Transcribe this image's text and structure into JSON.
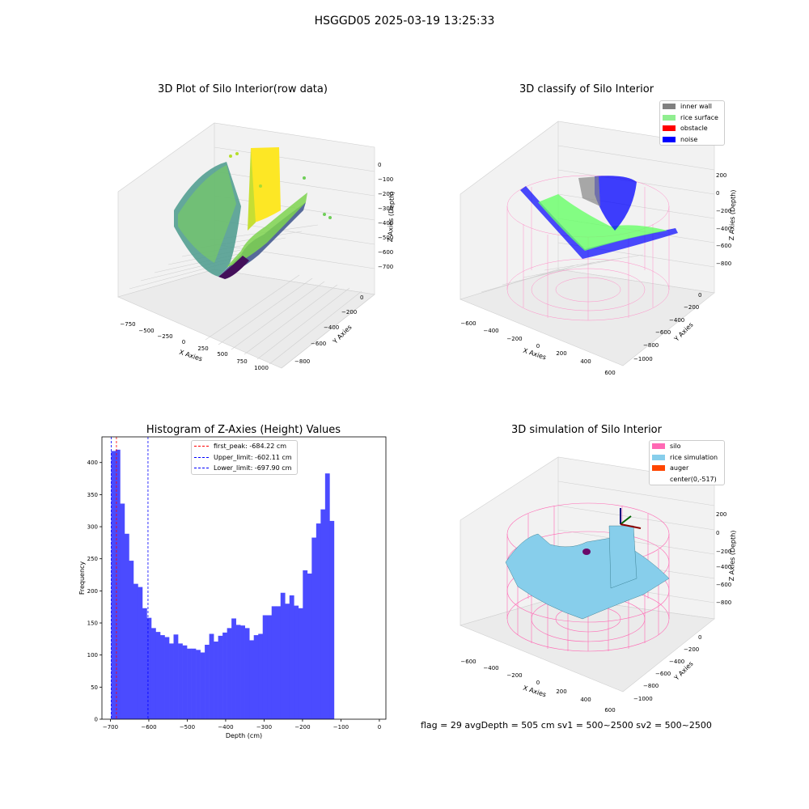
{
  "figure": {
    "suptitle": "HSGGD05 2025-03-19 13:25:33",
    "footer": "flag = 29  avgDepth = 505 cm  sv1 = 500~2500  sv2 = 500~2500"
  },
  "colors": {
    "hist_bar": "#4b4bff",
    "first_peak": "#ff0000",
    "upper_limit": "#0000ff",
    "lower_limit": "#0000ff",
    "inner_wall": "#808080",
    "rice_surface": "#90ee90",
    "obstacle": "#ff0000",
    "noise": "#0000ff",
    "silo": "#ff69b4",
    "rice_simulation": "#87ceeb",
    "auger": "#ff4500"
  },
  "panels": {
    "raw": {
      "title": "3D Plot of Silo Interior(row data)",
      "xlabel": "X Axies",
      "ylabel": "Y Axies",
      "zlabel": "Z Axies (Depth)",
      "xticks": [
        "−750",
        "−500",
        "−250",
        "0",
        "250",
        "500",
        "750",
        "1000"
      ],
      "yticks": [
        "0",
        "−200",
        "−400",
        "−600",
        "−800"
      ],
      "zticks": [
        "0",
        "−100",
        "−200",
        "−300",
        "−400",
        "−500",
        "−600",
        "−700"
      ]
    },
    "classify": {
      "title": "3D classify of Silo Interior",
      "xlabel": "X Axies",
      "ylabel": "Y Axies",
      "zlabel": "Z Axies (Depth)",
      "xticks": [
        "−600",
        "−400",
        "−200",
        "0",
        "200",
        "400",
        "600"
      ],
      "yticks": [
        "0",
        "−200",
        "−400",
        "−600",
        "−800",
        "−1000"
      ],
      "zticks": [
        "200",
        "0",
        "−200",
        "−400",
        "−600",
        "−800"
      ],
      "legend": [
        {
          "label": "inner wall",
          "color": "#808080"
        },
        {
          "label": "rice surface",
          "color": "#90ee90"
        },
        {
          "label": "obstacle",
          "color": "#ff0000"
        },
        {
          "label": "noise",
          "color": "#0000ff"
        }
      ]
    },
    "simulation": {
      "title": "3D simulation of Silo Interior",
      "xlabel": "X Axies",
      "ylabel": "Y Axies",
      "zlabel": "Z Axies (Depth)",
      "xticks": [
        "−600",
        "−400",
        "−200",
        "0",
        "200",
        "400",
        "600"
      ],
      "yticks": [
        "0",
        "−200",
        "−400",
        "−600",
        "−800",
        "−1000"
      ],
      "zticks": [
        "200",
        "0",
        "−200",
        "−400",
        "−600",
        "−800"
      ],
      "legend": [
        {
          "label": "silo",
          "color": "#ff69b4"
        },
        {
          "label": "rice simulation",
          "color": "#87ceeb"
        },
        {
          "label": "auger",
          "color": "#ff4500"
        },
        {
          "label": "center(0,-517)",
          "color": ""
        }
      ]
    }
  },
  "chart_data": [
    {
      "type": "bar",
      "title": "Histogram of Z-Axies (Height) Values",
      "xlabel": "Depth (cm)",
      "ylabel": "Frequency",
      "xlim": [
        -722,
        17
      ],
      "ylim": [
        0,
        440
      ],
      "xticks": [
        -700,
        -600,
        -500,
        -400,
        -300,
        -200,
        -100,
        0
      ],
      "yticks": [
        0,
        50,
        100,
        150,
        200,
        250,
        300,
        350,
        400
      ],
      "bin_start": -698,
      "bin_width": 11.6,
      "values": [
        418,
        420,
        336,
        289,
        247,
        211,
        206,
        173,
        158,
        142,
        136,
        131,
        128,
        118,
        132,
        118,
        115,
        110,
        110,
        108,
        104,
        116,
        133,
        121,
        130,
        135,
        142,
        157,
        147,
        146,
        142,
        123,
        131,
        133,
        162,
        162,
        176,
        176,
        197,
        180,
        193,
        177,
        173,
        232,
        227,
        283,
        305,
        327,
        383,
        309
      ],
      "legend": [
        {
          "label": "first_peak: -684.22 cm",
          "value": -684.22
        },
        {
          "label": "Upper_limit: -602.11 cm",
          "value": -602.11
        },
        {
          "label": "Lower_limit: -697.90 cm",
          "value": -697.9
        }
      ]
    }
  ]
}
